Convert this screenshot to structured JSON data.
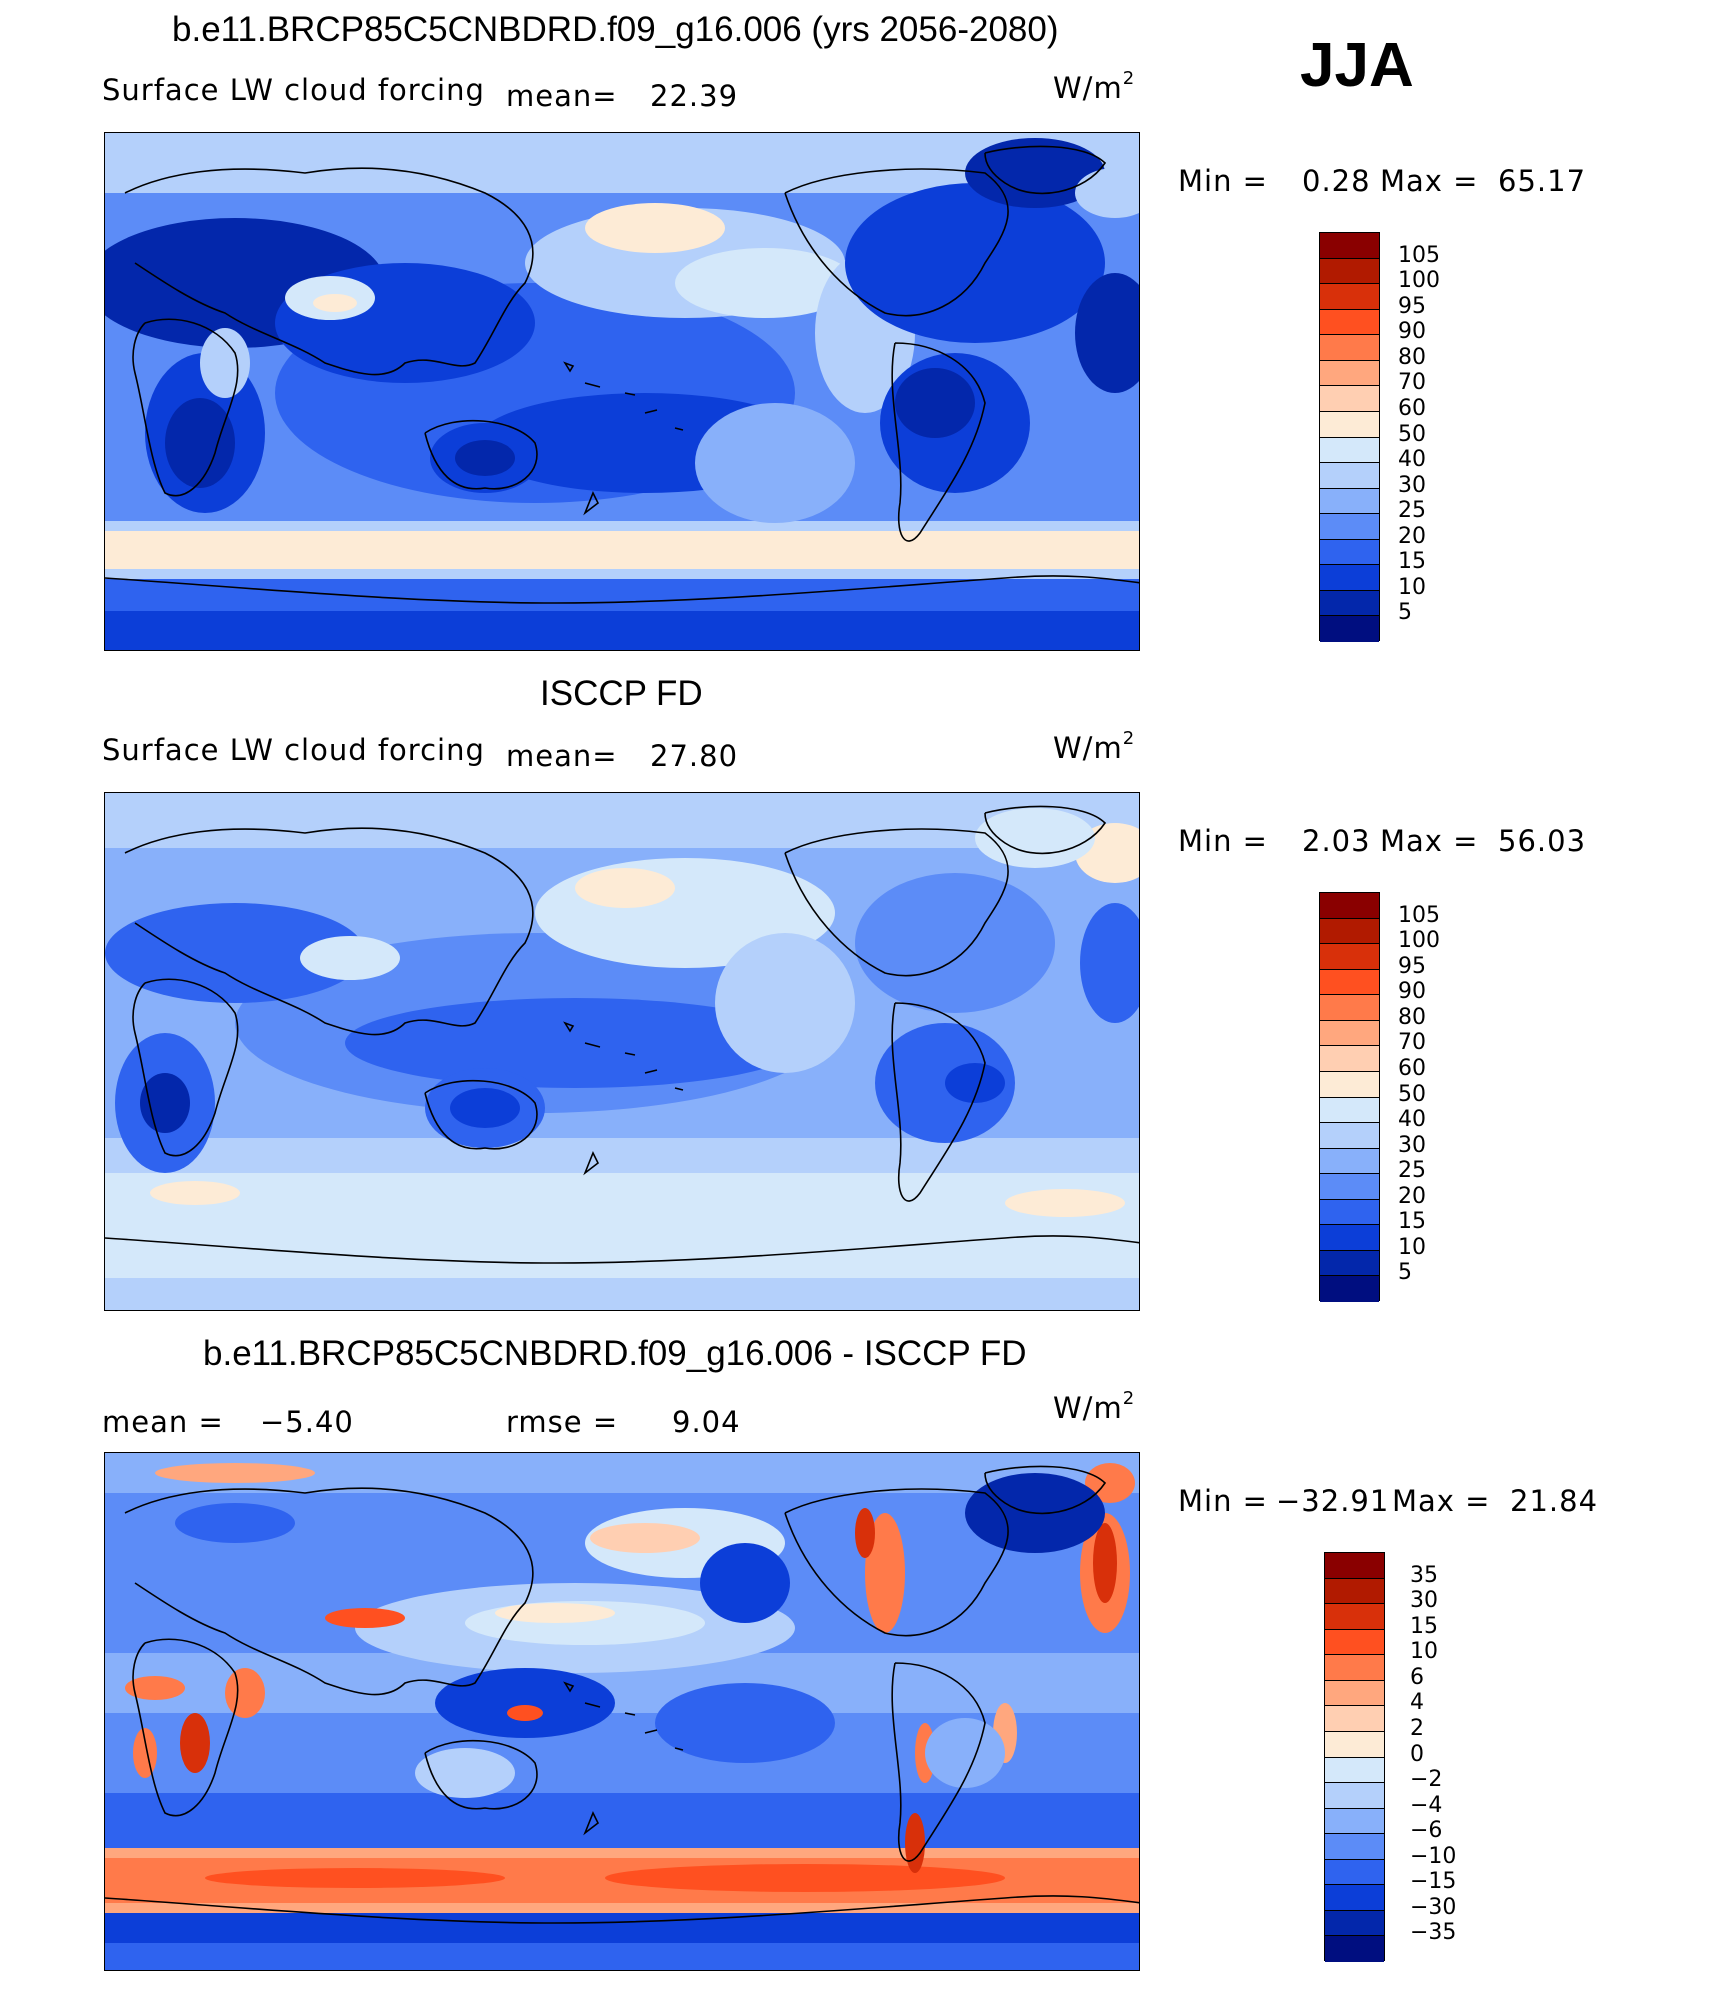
{
  "season": "JJA",
  "units_base": "W/m",
  "units_exp": "2",
  "panels": [
    {
      "id": "model",
      "title": "b.e11.BRCP85C5CNBDRD.f09_g16.006 (yrs 2056-2080)",
      "variable": "Surface LW cloud forcing",
      "mean_label": "mean=",
      "mean_value": "22.39",
      "min_label": "Min =",
      "min_value": "0.28",
      "max_label": "Max =",
      "max_value": "65.17"
    },
    {
      "id": "obs",
      "title": "ISCCP FD",
      "variable": "Surface LW cloud forcing",
      "mean_label": "mean=",
      "mean_value": "27.80",
      "min_label": "Min =",
      "min_value": "2.03",
      "max_label": "Max =",
      "max_value": "56.03"
    },
    {
      "id": "diff",
      "title": "b.e11.BRCP85C5CNBDRD.f09_g16.006 - ISCCP FD",
      "mean_label": "mean =",
      "mean_value": "−5.40",
      "rmse_label": "rmse =",
      "rmse_value": "9.04",
      "min_label": "Min =",
      "min_value": "−32.91",
      "max_label": "Max =",
      "max_value": "21.84"
    }
  ],
  "colorbars": {
    "absolute": {
      "labels": [
        "105",
        "100",
        "95",
        "90",
        "80",
        "70",
        "60",
        "50",
        "40",
        "30",
        "25",
        "20",
        "15",
        "10",
        "5"
      ],
      "colors": [
        "#8a0000",
        "#b11a00",
        "#d8300a",
        "#ff5020",
        "#ff7a4a",
        "#ffa77e",
        "#ffcfb2",
        "#fdebd6",
        "#d4e8fa",
        "#b4d0fb",
        "#88b0fa",
        "#5c8cf7",
        "#2f63ef",
        "#0c3ed8",
        "#0327ab",
        "#000e80"
      ]
    },
    "difference": {
      "labels": [
        "35",
        "30",
        "15",
        "10",
        "6",
        "4",
        "2",
        "0",
        "−2",
        "−4",
        "−6",
        "−10",
        "−15",
        "−30",
        "−35"
      ],
      "colors": [
        "#8a0000",
        "#b11a00",
        "#d8300a",
        "#ff5020",
        "#ff7a4a",
        "#ffa77e",
        "#ffcfb2",
        "#fdebd6",
        "#d4e8fa",
        "#b4d0fb",
        "#88b0fa",
        "#5c8cf7",
        "#2f63ef",
        "#0c3ed8",
        "#0327ab",
        "#000e80"
      ]
    }
  }
}
